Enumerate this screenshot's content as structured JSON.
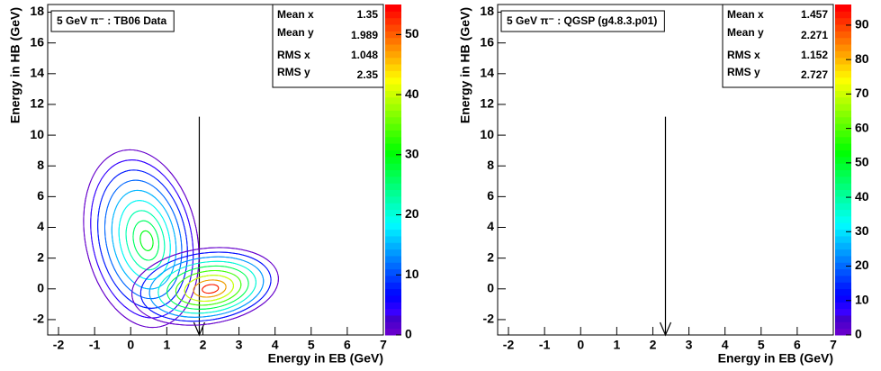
{
  "chart_data": [
    {
      "type": "contour",
      "title": "5 GeV π⁻ : TB06 Data",
      "xlabel": "Energy in EB (GeV)",
      "ylabel": "Energy in HB (GeV)",
      "xlim": [
        -2.3,
        7
      ],
      "xticks": [
        -2,
        -1,
        0,
        1,
        2,
        3,
        4,
        5,
        6,
        7
      ],
      "ylim": [
        -3,
        18.5
      ],
      "yticks": [
        -2,
        0,
        2,
        4,
        6,
        8,
        10,
        12,
        14,
        16,
        18
      ],
      "zlim": [
        0,
        55
      ],
      "zticks": [
        0,
        10,
        20,
        30,
        40,
        50
      ],
      "arrow": {
        "x": 1.9,
        "y1": 11.2,
        "y2": -3
      },
      "stats": {
        "labels": [
          "Mean x",
          "Mean y",
          "RMS x",
          "RMS y"
        ],
        "values": [
          1.35,
          1.989,
          1.048,
          2.35
        ]
      }
    },
    {
      "type": "contour",
      "title": "5 GeV π⁻ : QGSP (g4.8.3.p01)",
      "xlabel": "Energy in EB (GeV)",
      "ylabel": "Energy in HB (GeV)",
      "xlim": [
        -2.3,
        7
      ],
      "xticks": [
        -2,
        -1,
        0,
        1,
        2,
        3,
        4,
        5,
        6,
        7
      ],
      "ylim": [
        -3,
        18.5
      ],
      "yticks": [
        -2,
        0,
        2,
        4,
        6,
        8,
        10,
        12,
        14,
        16,
        18
      ],
      "zlim": [
        0,
        96
      ],
      "zticks": [
        0,
        10,
        20,
        30,
        40,
        50,
        60,
        70,
        80,
        90
      ],
      "arrow": {
        "x": 2.35,
        "y1": 11.2,
        "y2": -3
      },
      "stats": {
        "labels": [
          "Mean x",
          "Mean y",
          "RMS x",
          "RMS y"
        ],
        "values": [
          1.457,
          2.271,
          1.152,
          2.727
        ]
      }
    }
  ]
}
